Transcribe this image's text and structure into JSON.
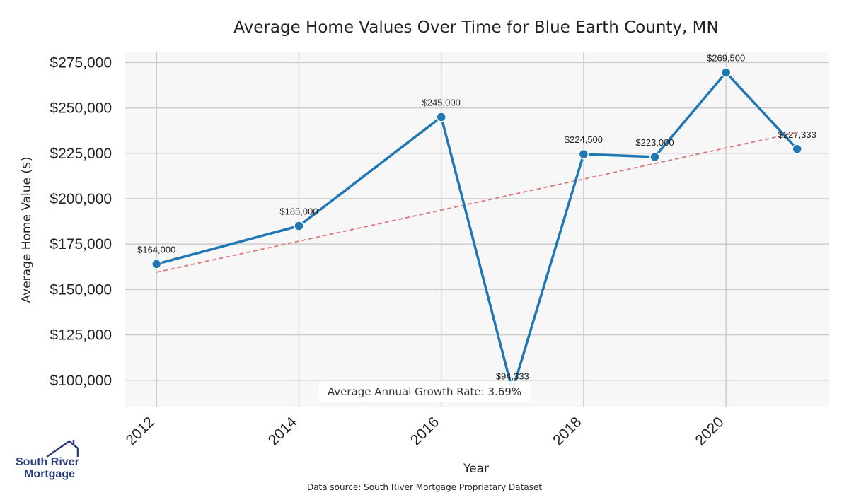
{
  "colors": {
    "series": "#1f77b4",
    "trend": "#d9797a",
    "grid": "#cccccc",
    "plot_bg": "#f7f7f7",
    "logo": "#2c3e7a"
  },
  "logo": {
    "line1": "South River",
    "line2": "Mortgage",
    "icon": "house-roof-icon"
  },
  "source_note": "Data source: South River Mortgage Proprietary Dataset",
  "growth_note": "Average Annual Growth Rate: 3.69%",
  "chart_data": {
    "type": "line",
    "title": "Average Home Values Over Time for Blue Earth County, MN",
    "xlabel": "Year",
    "ylabel": "Average Home Value ($)",
    "xlim": [
      2011.55,
      2021.45
    ],
    "ylim": [
      85500,
      281000
    ],
    "x_ticks": [
      2012,
      2014,
      2016,
      2018,
      2020
    ],
    "x_tick_labels": [
      "2012",
      "2014",
      "2016",
      "2018",
      "2020"
    ],
    "y_ticks": [
      100000,
      125000,
      150000,
      175000,
      200000,
      225000,
      250000,
      275000
    ],
    "y_tick_labels": [
      "$100,000",
      "$125,000",
      "$150,000",
      "$175,000",
      "$200,000",
      "$225,000",
      "$250,000",
      "$275,000"
    ],
    "grid": true,
    "series": [
      {
        "x": [
          2012,
          2014,
          2016,
          2017,
          2018,
          2019,
          2020,
          2021
        ],
        "values": [
          164000,
          185000,
          245000,
          94333,
          224500,
          223000,
          269500,
          227333
        ],
        "labels": [
          "$164,000",
          "$185,000",
          "$245,000",
          "$94,333",
          "$224,500",
          "$223,000",
          "$269,500",
          "$227,333"
        ]
      }
    ],
    "trendline": {
      "style": "dashed",
      "x": [
        2012,
        2021
      ],
      "values": [
        159500,
        236500
      ]
    }
  }
}
